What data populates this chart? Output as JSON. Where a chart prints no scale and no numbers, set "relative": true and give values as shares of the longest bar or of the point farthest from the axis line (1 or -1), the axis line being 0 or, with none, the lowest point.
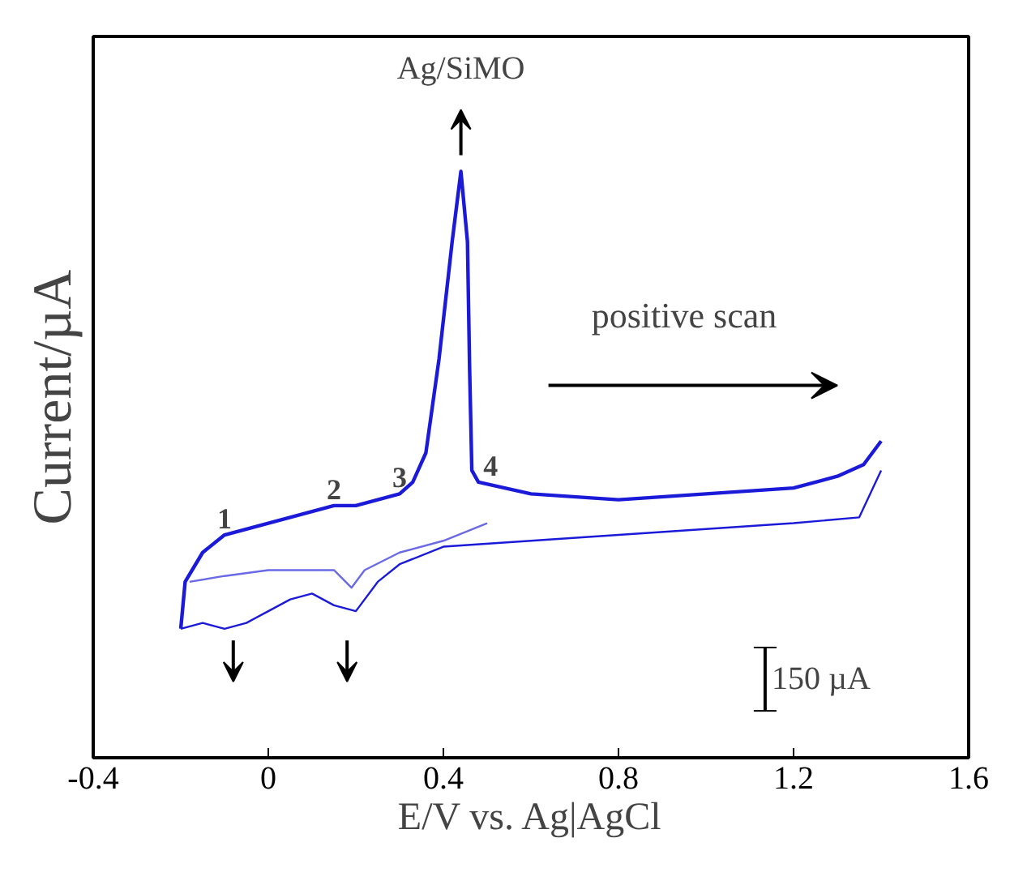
{
  "chart_data": {
    "type": "line",
    "relative": true,
    "xlabel": "E/V vs. Ag|AgCl",
    "ylabel": "Current/µA",
    "xlim": [
      -0.4,
      1.6
    ],
    "xticks": [
      -0.4,
      0,
      0.4,
      0.8,
      1.2,
      1.6
    ],
    "tick_labels": "x",
    "grid": false,
    "marker": "none",
    "line_style": "solid",
    "series": [
      {
        "color": "#1a1ad8",
        "x": [
          -0.2,
          -0.19,
          -0.15,
          -0.1,
          -0.05,
          0,
          0.05,
          0.1,
          0.15,
          0.2,
          0.25,
          0.3,
          0.33,
          0.36,
          0.39,
          0.42,
          0.44,
          0.455,
          0.46,
          0.465,
          0.48,
          0.6,
          0.8,
          1.0,
          1.2,
          1.3,
          1.36,
          1.4
        ],
        "values": [
          0.22,
          0.3,
          0.35,
          0.38,
          0.39,
          0.4,
          0.41,
          0.42,
          0.43,
          0.43,
          0.44,
          0.45,
          0.47,
          0.52,
          0.68,
          0.88,
          1.0,
          0.88,
          0.66,
          0.49,
          0.47,
          0.45,
          0.44,
          0.45,
          0.46,
          0.48,
          0.5,
          0.54
        ]
      },
      {
        "color": "#1a1ad8",
        "x": [
          1.4,
          1.35,
          1.2,
          1.0,
          0.8,
          0.6,
          0.4,
          0.3,
          0.25,
          0.2,
          0.15,
          0.1,
          0.05,
          0,
          -0.05,
          -0.1,
          -0.15,
          -0.2
        ],
        "values": [
          0.49,
          0.41,
          0.4,
          0.39,
          0.38,
          0.37,
          0.36,
          0.33,
          0.3,
          0.25,
          0.26,
          0.28,
          0.27,
          0.25,
          0.23,
          0.22,
          0.23,
          0.22
        ]
      },
      {
        "color": "#6a6ae6",
        "x": [
          0.5,
          0.4,
          0.3,
          0.22,
          0.19,
          0.15,
          0.1,
          0,
          -0.1,
          -0.18
        ],
        "values": [
          0.4,
          0.37,
          0.35,
          0.32,
          0.29,
          0.32,
          0.32,
          0.32,
          0.31,
          0.3
        ]
      }
    ],
    "annotations": [
      {
        "text": "Ag/SiMO",
        "x": 0.44,
        "y": 1.0
      },
      {
        "text": "1",
        "x": -0.1,
        "y": 0.38
      },
      {
        "text": "2",
        "x": 0.15,
        "y": 0.43
      },
      {
        "text": "3",
        "x": 0.3,
        "y": 0.45
      },
      {
        "text": "4",
        "x": 0.48,
        "y": 0.47
      },
      "positive scan",
      "150 µA"
    ]
  }
}
